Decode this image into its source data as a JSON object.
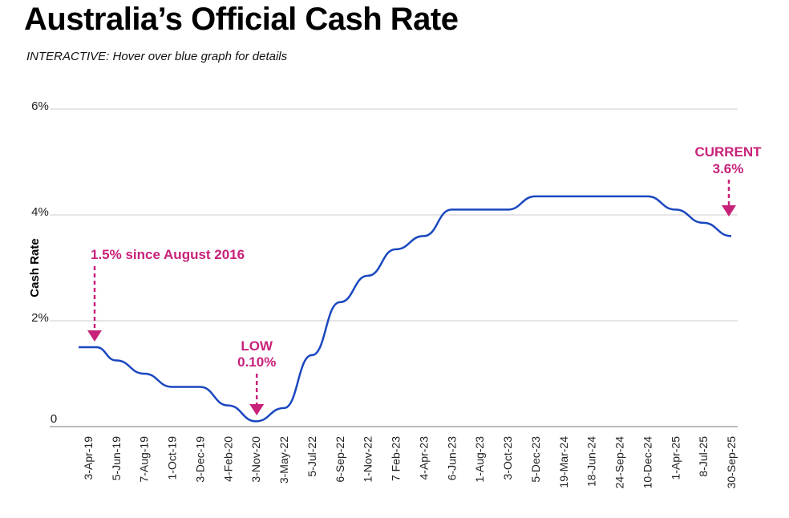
{
  "title": "Australia’s Official Cash Rate",
  "subtitle": "INTERACTIVE: Hover over blue graph for details",
  "colors": {
    "line": "#1a47c0",
    "annotation": "#c8217a",
    "grid": "#cccccc"
  },
  "chart_data": {
    "type": "line",
    "title": "Australia’s Official Cash Rate",
    "xlabel": "",
    "ylabel": "Cash Rate",
    "ylim": [
      0,
      6
    ],
    "yticks": [
      "0",
      "2%",
      "4%",
      "6%"
    ],
    "ytick_values": [
      0,
      2,
      4,
      6
    ],
    "grid": true,
    "categories": [
      "3-Apr-19",
      "5-Jun-19",
      "7-Aug-19",
      "1-Oct-19",
      "3-Dec-19",
      "4-Feb-20",
      "3-Nov-20",
      "3-May-22",
      "5-Jul-22",
      "6-Sep-22",
      "1-Nov-22",
      "7 Feb-23",
      "4-Apr-23",
      "6-Jun-23",
      "1-Aug-23",
      "3-Oct-23",
      "5-Dec-23",
      "19-Mar-24",
      "18-Jun-24",
      "24-Sep-24",
      "10-Dec-24",
      "1-Apr-25",
      "8-Jul-25",
      "30-Sep-25"
    ],
    "series": [
      {
        "name": "Cash Rate",
        "values": [
          1.5,
          1.25,
          1.0,
          0.75,
          0.75,
          0.4,
          0.1,
          0.35,
          1.35,
          2.35,
          2.85,
          3.35,
          3.6,
          4.1,
          4.1,
          4.1,
          4.35,
          4.35,
          4.35,
          4.35,
          4.35,
          4.1,
          3.85,
          3.6
        ]
      }
    ],
    "annotations": [
      {
        "lines": [
          "1.5% since August 2016"
        ],
        "category": "3-Apr-19"
      },
      {
        "lines": [
          "LOW",
          "0.10%"
        ],
        "category": "3-Nov-20"
      },
      {
        "lines": [
          "CURRENT",
          "3.6%"
        ],
        "category": "30-Sep-25"
      }
    ]
  }
}
